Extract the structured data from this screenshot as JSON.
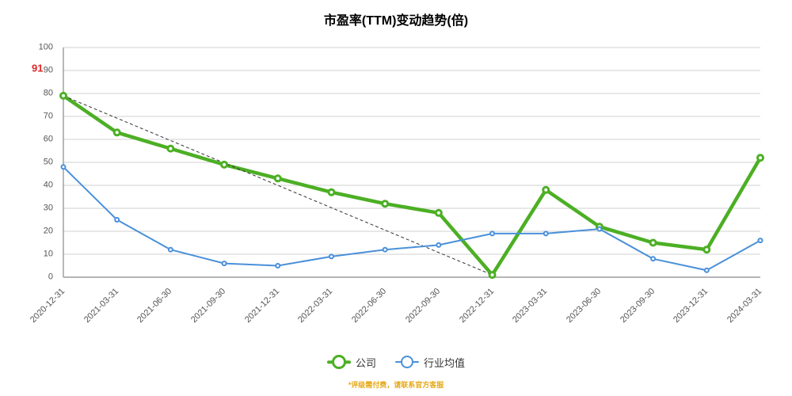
{
  "chart": {
    "type": "line",
    "title": "市盈率(TTM)变动趋势(倍)",
    "title_fontsize": 16,
    "title_color": "#000000",
    "background": "#ffffff",
    "x_categories": [
      "2020-12-31",
      "2021-03-31",
      "2021-06-30",
      "2021-09-30",
      "2021-12-31",
      "2022-03-31",
      "2022-06-30",
      "2022-09-30",
      "2022-12-31",
      "2023-03-31",
      "2023-06-30",
      "2023-09-30",
      "2023-12-31",
      "2024-03-31"
    ],
    "series": [
      {
        "name": "公司",
        "color": "#4caf24",
        "line_width": 4.5,
        "marker": "circle",
        "marker_size": 7,
        "marker_fill": "#ffffff",
        "marker_stroke": "#4caf24",
        "marker_stroke_width": 3,
        "trend": {
          "from": 0,
          "to": 8,
          "color": "#333333",
          "dash": "4,3",
          "width": 1
        },
        "values": [
          79,
          63,
          56,
          49,
          43,
          37,
          32,
          28,
          1,
          38,
          22,
          15,
          12,
          52
        ]
      },
      {
        "name": "行业均值",
        "color": "#4a90d9",
        "line_width": 2,
        "marker": "circle",
        "marker_size": 5,
        "marker_fill": "#ffffff",
        "marker_stroke": "#4a90d9",
        "marker_stroke_width": 2,
        "values": [
          48,
          25,
          12,
          6,
          5,
          9,
          12,
          14,
          19,
          19,
          21,
          8,
          3,
          16
        ]
      }
    ],
    "y": {
      "min": 0,
      "max": 100,
      "ticks": [
        0,
        10,
        20,
        30,
        40,
        50,
        60,
        70,
        80,
        90,
        100
      ],
      "grid_color": "#d0d0d0",
      "axis_color": "#888888",
      "label_color": "#555555",
      "label_fontsize": 11,
      "target": {
        "value": 91,
        "label": "91",
        "color": "#dc2626",
        "fontsize": 13
      }
    },
    "x": {
      "rotate": -45,
      "label_color": "#555555",
      "label_fontsize": 11,
      "axis_color": "#888888"
    },
    "legend": {
      "fontsize": 13,
      "color": "#333333"
    },
    "footer": {
      "text": "*评级需付费，请联系官方客服",
      "color": "#e6a817",
      "fontsize": 9
    }
  }
}
